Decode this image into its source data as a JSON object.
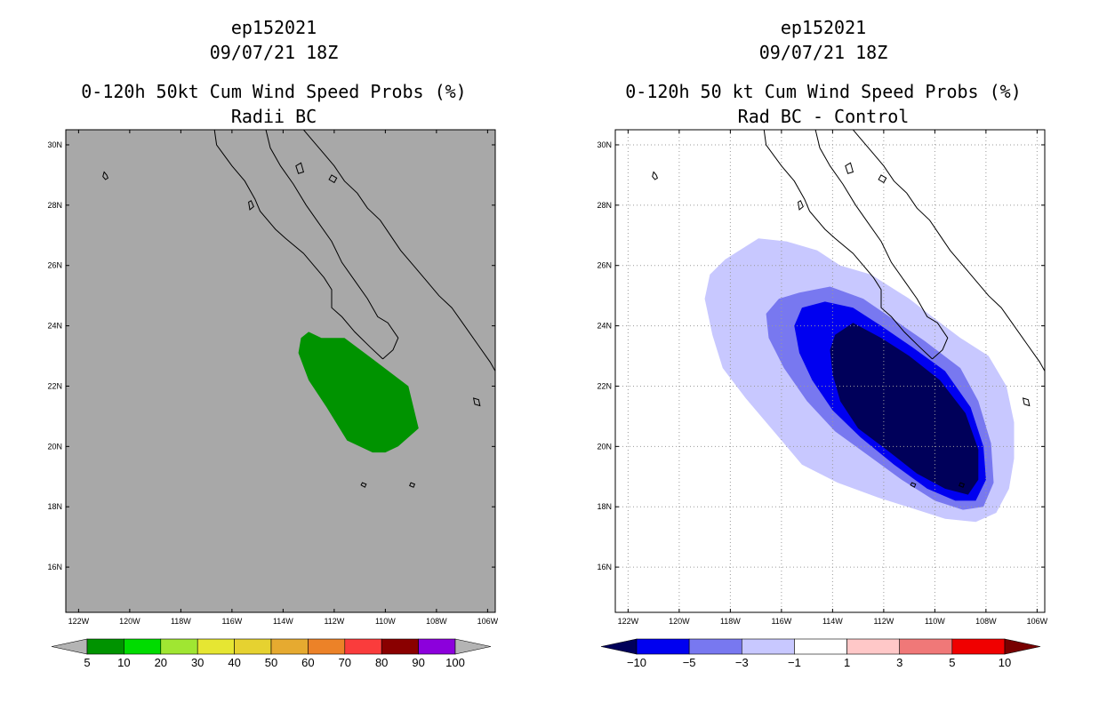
{
  "chart_data": [
    {
      "type": "map-contour",
      "storm_id": "ep152021",
      "datetime": "09/07/21 18Z",
      "title": "0-120h 50kt Cum Wind Speed Probs (%)",
      "subtitle": "Radii BC",
      "background": "#a8a8a8",
      "lon_range": [
        -122.5,
        -105.7
      ],
      "lat_range": [
        14.5,
        30.5
      ],
      "lon_ticks": [
        -122,
        -120,
        -118,
        -116,
        -114,
        -112,
        -110,
        -108,
        -106
      ],
      "lon_labels": [
        "122W",
        "120W",
        "118W",
        "116W",
        "114W",
        "112W",
        "110W",
        "108W",
        "106W"
      ],
      "lat_ticks": [
        16,
        18,
        20,
        22,
        24,
        26,
        28,
        30
      ],
      "lat_labels": [
        "16N",
        "18N",
        "20N",
        "22N",
        "24N",
        "26N",
        "28N",
        "30N"
      ],
      "gridlines": false,
      "regions": [
        {
          "label": "5-10%",
          "color": "#009300",
          "outline": [
            [
              -113.0,
              23.8
            ],
            [
              -112.5,
              23.6
            ],
            [
              -111.6,
              23.6
            ],
            [
              -110.5,
              22.9
            ],
            [
              -109.1,
              22.0
            ],
            [
              -108.7,
              20.6
            ],
            [
              -109.5,
              20.0
            ],
            [
              -110.0,
              19.8
            ],
            [
              -110.5,
              19.8
            ],
            [
              -111.5,
              20.2
            ],
            [
              -112.3,
              21.3
            ],
            [
              -113.0,
              22.2
            ],
            [
              -113.4,
              23.1
            ],
            [
              -113.3,
              23.6
            ]
          ]
        }
      ],
      "colorbar": {
        "ticks": [
          "5",
          "10",
          "20",
          "30",
          "40",
          "50",
          "60",
          "70",
          "80",
          "90",
          "100"
        ],
        "colors": [
          "#b4b4b4",
          "#009300",
          "#00dc00",
          "#a0e632",
          "#e6e632",
          "#e6d230",
          "#e6aa30",
          "#ec8228",
          "#fa3c3c",
          "#8a0000",
          "#8c00dc",
          "#b4b4b4"
        ]
      }
    },
    {
      "type": "map-contour",
      "storm_id": "ep152021",
      "datetime": "09/07/21 18Z",
      "title": "0-120h 50 kt Cum Wind Speed Probs (%)",
      "subtitle": "Rad BC - Control",
      "background": "#ffffff",
      "lon_range": [
        -122.5,
        -105.7
      ],
      "lat_range": [
        14.5,
        30.5
      ],
      "lon_ticks": [
        -122,
        -120,
        -118,
        -116,
        -114,
        -112,
        -110,
        -108,
        -106
      ],
      "lon_labels": [
        "122W",
        "120W",
        "118W",
        "116W",
        "114W",
        "112W",
        "110W",
        "108W",
        "106W"
      ],
      "lat_ticks": [
        16,
        18,
        20,
        22,
        24,
        26,
        28,
        30
      ],
      "lat_labels": [
        "16N",
        "18N",
        "20N",
        "22N",
        "24N",
        "26N",
        "28N",
        "30N"
      ],
      "gridlines": true,
      "regions": [
        {
          "label": "-3 to -1",
          "color": "#c8c8ff",
          "outline": [
            [
              -116.9,
              26.9
            ],
            [
              -115.8,
              26.8
            ],
            [
              -114.6,
              26.5
            ],
            [
              -113.7,
              26.0
            ],
            [
              -112.5,
              25.7
            ],
            [
              -111.0,
              24.9
            ],
            [
              -110.1,
              24.3
            ],
            [
              -109.0,
              23.6
            ],
            [
              -107.9,
              23.0
            ],
            [
              -107.2,
              22.0
            ],
            [
              -106.9,
              20.8
            ],
            [
              -106.9,
              19.6
            ],
            [
              -107.1,
              18.6
            ],
            [
              -107.6,
              17.8
            ],
            [
              -108.4,
              17.5
            ],
            [
              -109.6,
              17.6
            ],
            [
              -110.7,
              17.9
            ],
            [
              -112.2,
              18.3
            ],
            [
              -113.8,
              18.8
            ],
            [
              -115.2,
              19.4
            ],
            [
              -116.3,
              20.5
            ],
            [
              -117.4,
              21.6
            ],
            [
              -118.3,
              22.6
            ],
            [
              -118.7,
              23.7
            ],
            [
              -119.0,
              24.9
            ],
            [
              -118.8,
              25.7
            ],
            [
              -118.2,
              26.2
            ]
          ]
        },
        {
          "label": "-5 to -3",
          "color": "#7878f0",
          "outline": [
            [
              -116.1,
              24.9
            ],
            [
              -115.3,
              25.1
            ],
            [
              -114.1,
              25.3
            ],
            [
              -112.8,
              24.9
            ],
            [
              -111.6,
              24.2
            ],
            [
              -110.4,
              23.5
            ],
            [
              -109.0,
              22.6
            ],
            [
              -108.3,
              21.5
            ],
            [
              -107.8,
              20.1
            ],
            [
              -107.7,
              18.8
            ],
            [
              -108.1,
              18.0
            ],
            [
              -108.9,
              17.9
            ],
            [
              -110.0,
              18.2
            ],
            [
              -111.3,
              18.9
            ],
            [
              -112.6,
              19.7
            ],
            [
              -113.9,
              20.5
            ],
            [
              -115.0,
              21.5
            ],
            [
              -115.9,
              22.6
            ],
            [
              -116.5,
              23.6
            ],
            [
              -116.6,
              24.4
            ]
          ]
        },
        {
          "label": "-10 to -5",
          "color": "#0000f0",
          "outline": [
            [
              -115.2,
              24.6
            ],
            [
              -114.3,
              24.8
            ],
            [
              -113.2,
              24.6
            ],
            [
              -112.1,
              24.0
            ],
            [
              -110.9,
              23.3
            ],
            [
              -109.6,
              22.5
            ],
            [
              -108.6,
              21.3
            ],
            [
              -108.1,
              20.0
            ],
            [
              -108.0,
              18.9
            ],
            [
              -108.4,
              18.2
            ],
            [
              -109.2,
              18.2
            ],
            [
              -110.3,
              18.6
            ],
            [
              -111.6,
              19.4
            ],
            [
              -112.9,
              20.3
            ],
            [
              -114.0,
              21.2
            ],
            [
              -114.8,
              22.2
            ],
            [
              -115.3,
              23.1
            ],
            [
              -115.5,
              24.0
            ]
          ]
        },
        {
          "label": "< -10",
          "color": "#00005a",
          "outline": [
            [
              -113.9,
              23.7
            ],
            [
              -113.2,
              24.1
            ],
            [
              -112.1,
              23.6
            ],
            [
              -111.0,
              23.0
            ],
            [
              -109.8,
              22.2
            ],
            [
              -108.8,
              21.1
            ],
            [
              -108.3,
              19.9
            ],
            [
              -108.3,
              18.9
            ],
            [
              -108.7,
              18.4
            ],
            [
              -109.6,
              18.6
            ],
            [
              -110.7,
              19.1
            ],
            [
              -111.9,
              19.9
            ],
            [
              -113.0,
              20.6
            ],
            [
              -113.7,
              21.5
            ],
            [
              -114.0,
              22.4
            ],
            [
              -114.1,
              23.2
            ]
          ]
        }
      ],
      "colorbar": {
        "ticks": [
          "−10",
          "−5",
          "−3",
          "−1",
          "1",
          "3",
          "5",
          "10"
        ],
        "colors": [
          "#00005a",
          "#0000f0",
          "#7878f0",
          "#c8c8ff",
          "#ffffff",
          "#ffc8c8",
          "#f07878",
          "#f00000",
          "#780000"
        ]
      }
    }
  ]
}
